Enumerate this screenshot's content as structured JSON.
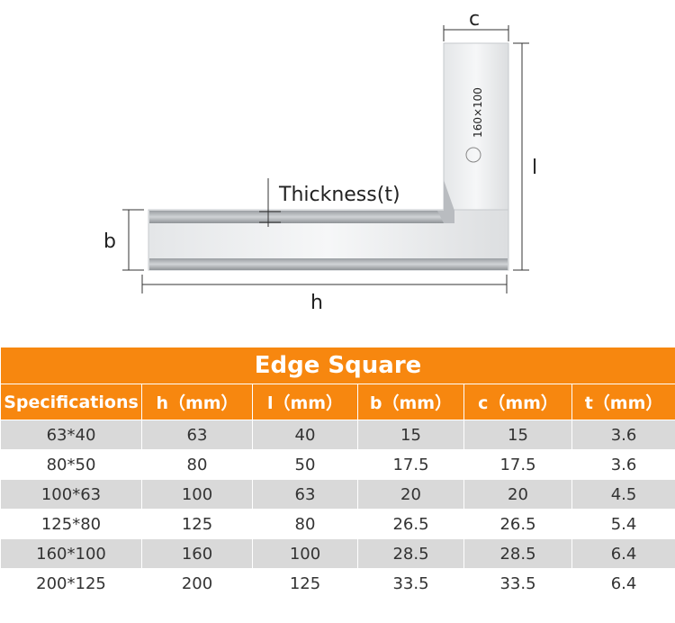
{
  "diagram": {
    "c": "c",
    "l": "l",
    "b": "b",
    "h": "h",
    "thickness": "Thickness(t)",
    "engraving": "160×100"
  },
  "table": {
    "title": "Edge Square",
    "headers": [
      "Specifications",
      "h（mm）",
      "l（mm）",
      "b（mm）",
      "c（mm）",
      "t（mm）"
    ],
    "rows": [
      [
        "63*40",
        "63",
        "40",
        "15",
        "15",
        "3.6"
      ],
      [
        "80*50",
        "80",
        "50",
        "17.5",
        "17.5",
        "3.6"
      ],
      [
        "100*63",
        "100",
        "63",
        "20",
        "20",
        "4.5"
      ],
      [
        "125*80",
        "125",
        "80",
        "26.5",
        "26.5",
        "5.4"
      ],
      [
        "160*100",
        "160",
        "100",
        "28.5",
        "28.5",
        "6.4"
      ],
      [
        "200*125",
        "200",
        "125",
        "33.5",
        "33.5",
        "6.4"
      ]
    ]
  }
}
